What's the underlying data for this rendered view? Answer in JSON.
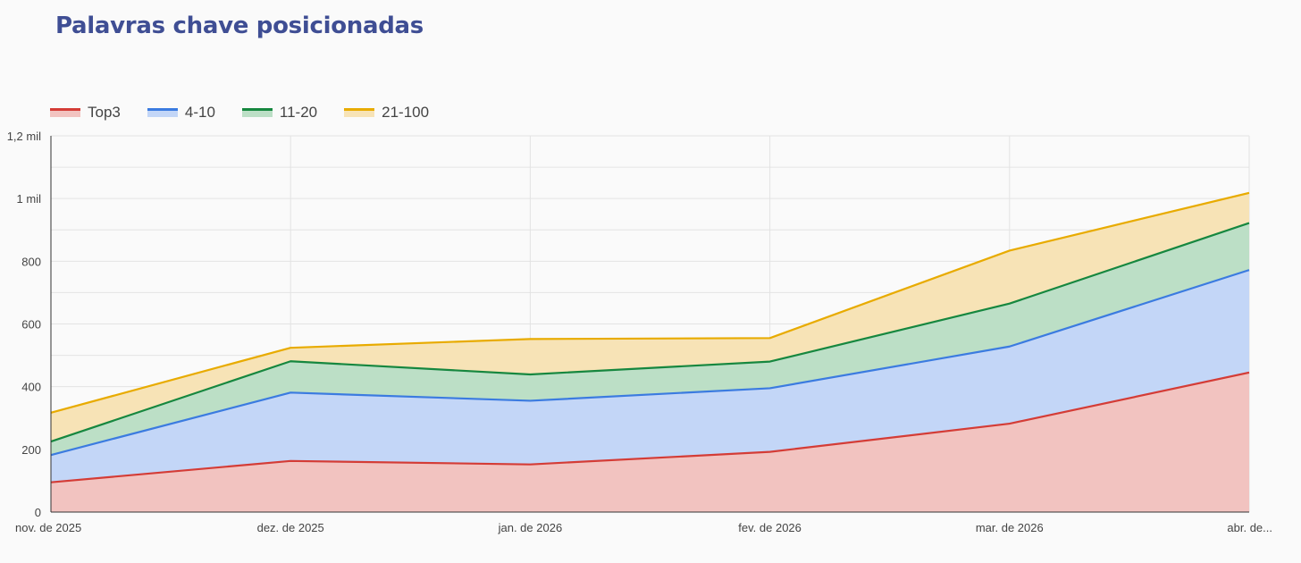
{
  "title": "Palavras chave posicionadas",
  "chart_data": {
    "type": "area",
    "stacked": true,
    "categories": [
      "nov. de 2025",
      "dez. de 2025",
      "jan. de 2026",
      "fev. de 2026",
      "mar. de 2026",
      "abr. de..."
    ],
    "series": [
      {
        "name": "Top3",
        "values": [
          95,
          163,
          152,
          192,
          282,
          445
        ],
        "color": "#d43c36",
        "fill": "#f2c3c0"
      },
      {
        "name": "4-10",
        "values": [
          87,
          218,
          203,
          203,
          246,
          327
        ],
        "color": "#3b7be0",
        "fill": "#c3d6f7"
      },
      {
        "name": "11-20",
        "values": [
          43,
          100,
          84,
          85,
          137,
          150
        ],
        "color": "#16873f",
        "fill": "#bcdfc6"
      },
      {
        "name": "21-100",
        "values": [
          92,
          43,
          113,
          75,
          169,
          96
        ],
        "color": "#e8ab00",
        "fill": "#f7e3b6"
      }
    ],
    "y_ticks": [
      {
        "value": 0,
        "label": "0"
      },
      {
        "value": 200,
        "label": "200"
      },
      {
        "value": 400,
        "label": "400"
      },
      {
        "value": 600,
        "label": "600"
      },
      {
        "value": 800,
        "label": "800"
      },
      {
        "value": 1000,
        "label": "1 mil"
      },
      {
        "value": 1200,
        "label": "1,2 mil"
      }
    ],
    "ylim": [
      0,
      1200
    ],
    "grid": true,
    "legend_position": "top-left"
  }
}
